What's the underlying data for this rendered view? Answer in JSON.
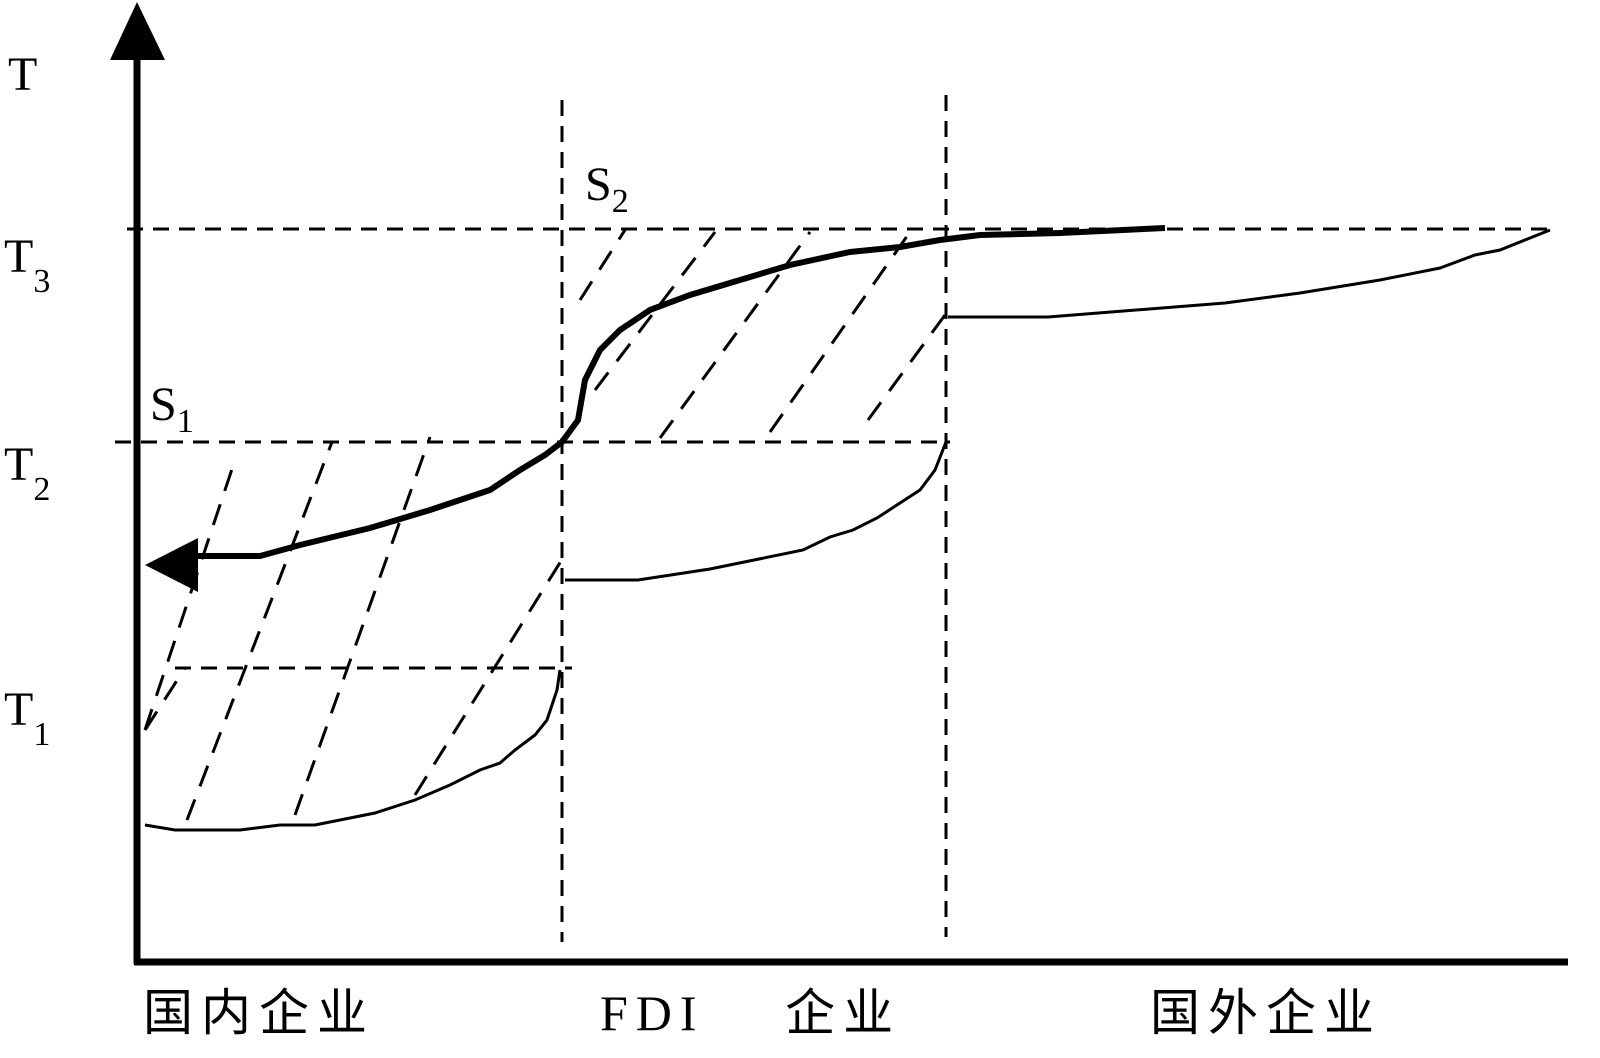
{
  "y_axis": {
    "label": "T"
  },
  "levels": [
    {
      "symbol": "T",
      "subscript": "3"
    },
    {
      "symbol": "T",
      "subscript": "2"
    },
    {
      "symbol": "T",
      "subscript": "1"
    }
  ],
  "curves": [
    {
      "symbol": "S",
      "subscript": "1"
    },
    {
      "symbol": "S",
      "subscript": "2"
    }
  ],
  "regions": [
    "国内企业",
    "FDI 企业",
    "国外企业"
  ]
}
